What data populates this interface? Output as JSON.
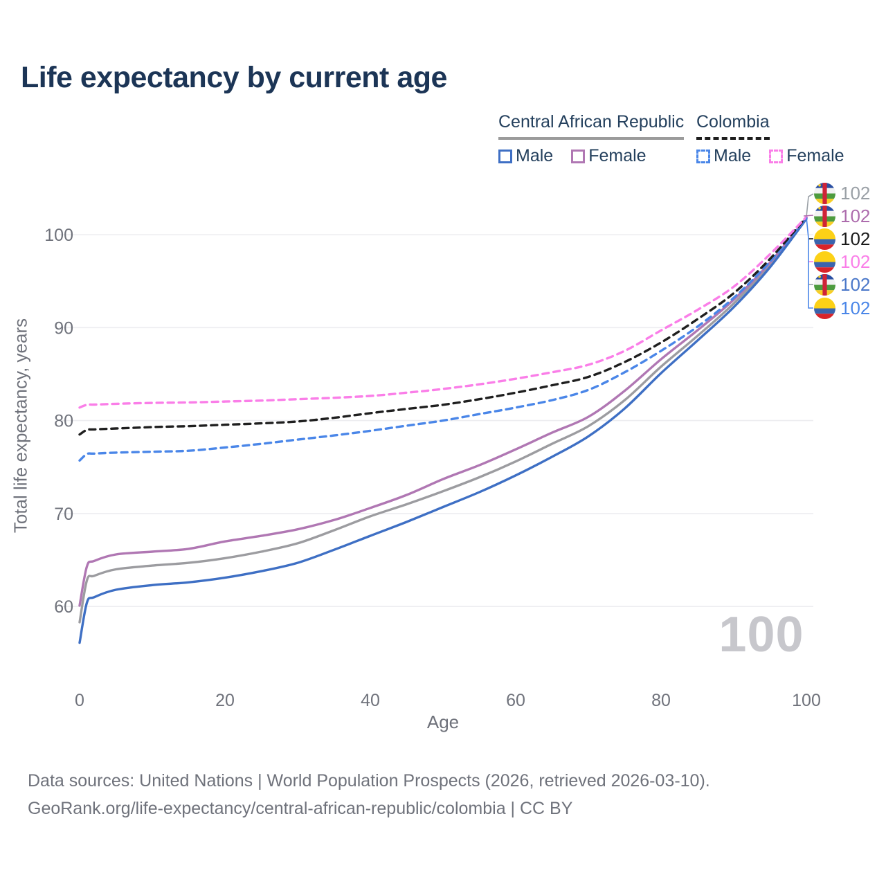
{
  "title": "Life expectancy by current age",
  "legend": {
    "groups": [
      {
        "name": "Central African Republic",
        "line_style": "solid",
        "underline_color": "#9b9b9b",
        "items": [
          {
            "label": "Male",
            "color": "#3e6fc4"
          },
          {
            "label": "Female",
            "color": "#b077b3"
          }
        ]
      },
      {
        "name": "Colombia",
        "line_style": "dashed",
        "underline_color": "#1d1d1d",
        "items": [
          {
            "label": "Male",
            "color": "#4a86e8"
          },
          {
            "label": "Female",
            "color": "#fa7ee8"
          }
        ]
      }
    ]
  },
  "chart_data": {
    "type": "line",
    "title": "Life expectancy by current age",
    "xlabel": "Age",
    "ylabel": "Total life expectancy, years",
    "xticks": [
      0,
      20,
      40,
      60,
      80,
      100
    ],
    "yticks": [
      60,
      70,
      80,
      90,
      100
    ],
    "xlim": [
      0,
      100
    ],
    "ylim": [
      55,
      103
    ],
    "grid": "horizontal-only",
    "legend_position": "top-right",
    "x": [
      0,
      1,
      2,
      5,
      10,
      15,
      20,
      25,
      30,
      35,
      40,
      45,
      50,
      55,
      60,
      65,
      70,
      75,
      80,
      85,
      90,
      95,
      100
    ],
    "series": [
      {
        "id": "car-total",
        "name": "Central African Republic Both sexes",
        "color": "#9c9ca0",
        "dashed": false,
        "values": [
          58.3,
          62.8,
          63.3,
          64.0,
          64.4,
          64.7,
          65.2,
          65.9,
          66.8,
          68.2,
          69.7,
          71.0,
          72.4,
          73.9,
          75.6,
          77.5,
          79.4,
          82.2,
          85.8,
          89.1,
          92.6,
          96.8,
          101.8
        ]
      },
      {
        "id": "car-female",
        "name": "Central African Republic Female",
        "color": "#b077b3",
        "dashed": false,
        "values": [
          60.1,
          64.3,
          64.9,
          65.6,
          65.9,
          66.2,
          67.0,
          67.6,
          68.3,
          69.3,
          70.6,
          72.0,
          73.7,
          75.2,
          76.9,
          78.7,
          80.4,
          83.2,
          86.6,
          89.7,
          93.0,
          97.0,
          101.8
        ]
      },
      {
        "id": "car-male",
        "name": "Central African Republic Male",
        "color": "#3e6fc4",
        "dashed": false,
        "values": [
          56.1,
          60.4,
          61.0,
          61.8,
          62.3,
          62.6,
          63.1,
          63.8,
          64.7,
          66.1,
          67.6,
          69.1,
          70.7,
          72.3,
          74.1,
          76.1,
          78.3,
          81.3,
          85.1,
          88.6,
          92.2,
          96.5,
          101.7
        ]
      },
      {
        "id": "col-male",
        "name": "Colombia Male",
        "color": "#4a86e8",
        "dashed": true,
        "values": [
          75.7,
          76.4,
          76.45,
          76.55,
          76.65,
          76.75,
          77.1,
          77.5,
          77.95,
          78.4,
          78.9,
          79.45,
          80.0,
          80.7,
          81.4,
          82.2,
          83.3,
          85.2,
          87.5,
          90.1,
          93.2,
          97.1,
          101.8
        ]
      },
      {
        "id": "col-total",
        "name": "Colombia Both sexes",
        "color": "#1f1f1f",
        "dashed": true,
        "values": [
          78.5,
          79.0,
          79.05,
          79.15,
          79.3,
          79.4,
          79.55,
          79.7,
          79.9,
          80.3,
          80.8,
          81.25,
          81.7,
          82.3,
          83.0,
          83.8,
          84.7,
          86.3,
          88.4,
          90.9,
          93.7,
          97.4,
          101.9
        ]
      },
      {
        "id": "col-female",
        "name": "Colombia Female",
        "color": "#fa7ee8",
        "dashed": true,
        "values": [
          81.4,
          81.7,
          81.72,
          81.8,
          81.9,
          81.95,
          82.05,
          82.15,
          82.3,
          82.45,
          82.65,
          83.0,
          83.4,
          83.9,
          84.5,
          85.2,
          86.0,
          87.5,
          89.7,
          91.9,
          94.4,
          97.9,
          101.9
        ]
      }
    ],
    "end_labels": [
      {
        "series": "car-total",
        "flag": "car",
        "value": "102",
        "color": "#9aa0a6"
      },
      {
        "series": "car-female",
        "flag": "car",
        "value": "102",
        "color": "#ad6cad"
      },
      {
        "series": "col-total",
        "flag": "col",
        "value": "102",
        "color": "#1a1a1a"
      },
      {
        "series": "col-female",
        "flag": "col",
        "value": "102",
        "color": "#fa7ee8"
      },
      {
        "series": "car-male",
        "flag": "car",
        "value": "102",
        "color": "#4a77c9"
      },
      {
        "series": "col-male",
        "flag": "col",
        "value": "102",
        "color": "#4a86e8"
      }
    ]
  },
  "watermark": "100",
  "footer": {
    "line1": "Data sources: United Nations | World Population Prospects (2026, retrieved 2026-03-10).",
    "line2": "GeoRank.org/life-expectancy/central-african-republic/colombia | CC BY"
  }
}
